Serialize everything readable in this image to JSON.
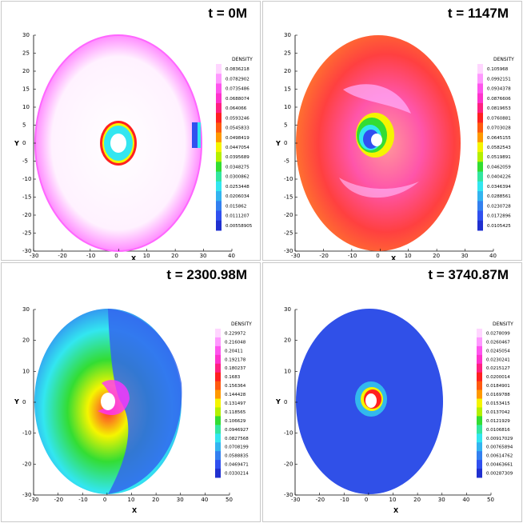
{
  "panels": [
    {
      "title": "t = 0M",
      "axes": {
        "xlabel": "X",
        "ylabel": "Y",
        "xticks": [
          "-30",
          "-20",
          "-10",
          "0",
          "10",
          "20",
          "30",
          "40"
        ],
        "yticks": [
          "30",
          "25",
          "20",
          "15",
          "10",
          "5",
          "0",
          "-5",
          "-10",
          "-15",
          "-20",
          "-25",
          "-30"
        ]
      },
      "legend": {
        "title": "DENSITY",
        "values": [
          "0.0836218",
          "0.0782902",
          "0.0735486",
          "0.0688074",
          "0.064066",
          "0.0593246",
          "0.0545833",
          "0.0498419",
          "0.0447054",
          "0.0395689",
          "0.0348275",
          "0.0300862",
          "0.0253448",
          "0.0206034",
          "0.015862",
          "0.0111207",
          "0.00558905"
        ]
      }
    },
    {
      "title": "t = 1147M",
      "axes": {
        "xlabel": "X",
        "ylabel": "Y",
        "xticks": [
          "-30",
          "-20",
          "-10",
          "0",
          "10",
          "20",
          "30",
          "40"
        ],
        "yticks": [
          "30",
          "25",
          "20",
          "15",
          "10",
          "5",
          "0",
          "-5",
          "-10",
          "-15",
          "-20",
          "-25",
          "-30"
        ]
      },
      "legend": {
        "title": "DENSITY",
        "values": [
          "0.105968",
          "0.0992151",
          "0.0934378",
          "0.0876606",
          "0.0819653",
          "0.0760881",
          "0.0703028",
          "0.0645155",
          "0.0582543",
          "0.0519891",
          "0.0462059",
          "0.0404226",
          "0.0346394",
          "0.0288561",
          "0.0230728",
          "0.0172896",
          "0.0105425"
        ]
      }
    },
    {
      "title": "t = 2300.98M",
      "axes": {
        "xlabel": "X",
        "ylabel": "Y",
        "xticks": [
          "-30",
          "-20",
          "-10",
          "0",
          "10",
          "20",
          "30",
          "40",
          "50"
        ],
        "yticks": [
          "30",
          "20",
          "10",
          "0",
          "-10",
          "-20",
          "-30"
        ]
      },
      "legend": {
        "title": "DENSITY",
        "values": [
          "0.229972",
          "0.216048",
          "0.20411",
          "0.192178",
          "0.180237",
          "0.1683",
          "0.156364",
          "0.144428",
          "0.131497",
          "0.118565",
          "0.106629",
          "0.0946927",
          "0.0827568",
          "0.0708199",
          "0.0588835",
          "0.0469471",
          "0.0330214"
        ]
      }
    },
    {
      "title": "t = 3740.87M",
      "axes": {
        "xlabel": "X",
        "ylabel": "Y",
        "xticks": [
          "-30",
          "-20",
          "-10",
          "0",
          "10",
          "20",
          "30",
          "40",
          "50"
        ],
        "yticks": [
          "30",
          "20",
          "10",
          "0",
          "-10",
          "-20",
          "-30"
        ]
      },
      "legend": {
        "title": "DENSITY",
        "values": [
          "0.0278099",
          "0.0260467",
          "0.0245054",
          "0.0230241",
          "0.0215127",
          "0.0200014",
          "0.0184901",
          "0.0169788",
          "0.0153415",
          "0.0137042",
          "0.0121929",
          "0.0106816",
          "0.00917029",
          "0.00765894",
          "0.00614762",
          "0.00463661",
          "0.00287309"
        ]
      }
    }
  ],
  "colors": {
    "magenta": "#ff33ff",
    "red": "#ff2020",
    "yellow": "#f5f500",
    "green": "#33dd33",
    "cyan": "#33e6f0",
    "blue": "#3050f0",
    "white": "#ffffff"
  }
}
